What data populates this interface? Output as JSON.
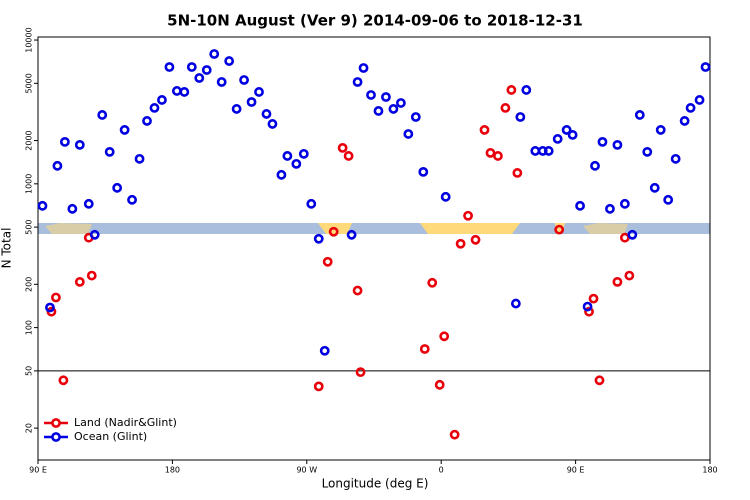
{
  "chart_data": {
    "type": "scatter",
    "title": "5N-10N August (Ver 9)   2014-09-06 to 2018-12-31",
    "xlabel": "Longitude (deg E)",
    "ylabel": "N Total",
    "log_y": true,
    "xlim": [
      90,
      540
    ],
    "ylim": [
      12,
      10500
    ],
    "xticks": [
      {
        "value": 90,
        "label": "90 E"
      },
      180,
      {
        "value": 270,
        "label": "90 W"
      },
      {
        "value": 360,
        "label": "0"
      },
      {
        "value": 450,
        "label": "90 E"
      },
      {
        "value": 540,
        "label": "180"
      }
    ],
    "yticks": [
      20,
      50,
      100,
      200,
      500,
      1000,
      2000,
      5000,
      10000
    ],
    "hline": 50,
    "legend": "lower left",
    "series": [
      {
        "name": "Land (Nadir&Glint)",
        "color": "#e8000b",
        "x": [
          99,
          102,
          107,
          118,
          124,
          126,
          288,
          284,
          294,
          298,
          278,
          304,
          306,
          349,
          354,
          359,
          362,
          369,
          373,
          378,
          383,
          389,
          393,
          398,
          403,
          407,
          411,
          439,
          459,
          462,
          466,
          478,
          483,
          486
        ],
        "values": [
          129,
          162,
          43,
          208,
          422,
          230,
          464,
          287,
          1778,
          1563,
          39,
          181,
          49,
          71,
          205,
          40,
          87,
          18,
          383,
          600,
          408,
          2371,
          1640,
          1563,
          3373,
          4497,
          1191,
          480,
          129,
          159,
          43,
          208,
          422,
          230
        ]
      },
      {
        "name": "Ocean (Glint)",
        "color": "#0000e0",
        "x": [
          93,
          98,
          103,
          108,
          113,
          118,
          124,
          128,
          133,
          138,
          143,
          148,
          153,
          158,
          163,
          168,
          173,
          178,
          183,
          188,
          193,
          198,
          203,
          208,
          213,
          218,
          223,
          228,
          233,
          238,
          243,
          247,
          253,
          257,
          263,
          268,
          273,
          278,
          282,
          300,
          304,
          308,
          313,
          318,
          323,
          328,
          333,
          338,
          343,
          348,
          363,
          410,
          413,
          417,
          423,
          428,
          432,
          438,
          444,
          448,
          453,
          458,
          463,
          468,
          473,
          478,
          483,
          488,
          493,
          498,
          503,
          507,
          512,
          517,
          523,
          527,
          533,
          537
        ],
        "values": [
          703,
          138,
          1334,
          1957,
          670,
          1866,
          726,
          442,
          3013,
          1668,
          938,
          2371,
          774,
          1492,
          2738,
          3373,
          3831,
          6493,
          4425,
          4356,
          6493,
          5447,
          6190,
          8000,
          5109,
          7144,
          3318,
          5275,
          3707,
          4356,
          3063,
          2610,
          1155,
          1563,
          1377,
          1616,
          726,
          415,
          69,
          442,
          5109,
          6393,
          4150,
          3213,
          4016,
          3318,
          3651,
          2222,
          2917,
          1211,
          812,
          147,
          2917,
          4497,
          1694,
          1694,
          1694,
          2053,
          2371,
          2189,
          703,
          140,
          1334,
          1957,
          670,
          1866,
          726,
          442,
          3013,
          1668,
          938,
          2371,
          774,
          1492,
          2738,
          3373,
          3831,
          6493
        ]
      }
    ]
  }
}
